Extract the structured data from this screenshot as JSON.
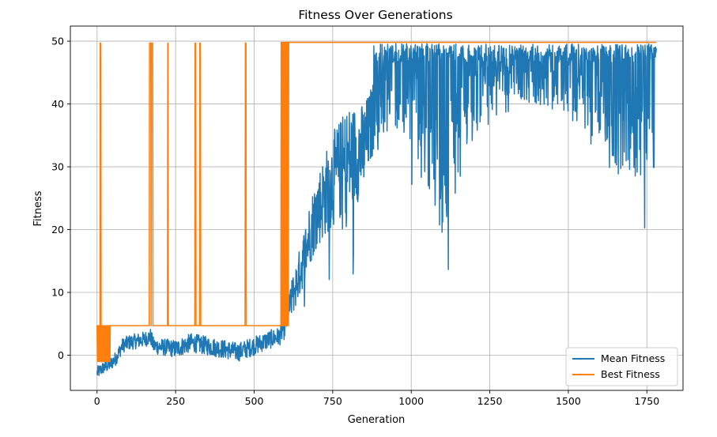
{
  "chart_data": {
    "type": "line",
    "title": "Fitness Over Generations",
    "xlabel": "Generation",
    "ylabel": "Fitness",
    "xlim": [
      -85,
      1865
    ],
    "ylim": [
      -5.6,
      52.4
    ],
    "xticks": [
      0,
      250,
      500,
      750,
      1000,
      1250,
      1500,
      1750
    ],
    "yticks": [
      0,
      10,
      20,
      30,
      40,
      50
    ],
    "grid": true,
    "legend_position": "lower right",
    "n_generations": 1780,
    "series": [
      {
        "name": "Mean Fitness",
        "color": "#1f77b4",
        "baseline_points": [
          [
            0,
            -2.8
          ],
          [
            20,
            -2
          ],
          [
            40,
            -1.5
          ],
          [
            60,
            -0.5
          ],
          [
            80,
            1.5
          ],
          [
            100,
            2
          ],
          [
            150,
            2.5
          ],
          [
            170,
            3
          ],
          [
            180,
            1.5
          ],
          [
            250,
            1
          ],
          [
            300,
            2
          ],
          [
            350,
            1.5
          ],
          [
            400,
            1
          ],
          [
            450,
            0.5
          ],
          [
            500,
            1.5
          ],
          [
            550,
            2.5
          ],
          [
            580,
            3
          ],
          [
            600,
            5
          ],
          [
            620,
            9
          ],
          [
            650,
            14
          ],
          [
            680,
            20
          ],
          [
            700,
            23
          ],
          [
            750,
            28
          ],
          [
            800,
            31
          ],
          [
            850,
            33
          ],
          [
            880,
            38
          ],
          [
            900,
            47
          ],
          [
            1000,
            47
          ],
          [
            1050,
            42
          ],
          [
            1100,
            40
          ],
          [
            1150,
            44
          ],
          [
            1200,
            46
          ],
          [
            1300,
            48
          ],
          [
            1500,
            47
          ],
          [
            1600,
            45
          ],
          [
            1700,
            43
          ],
          [
            1780,
            44
          ]
        ],
        "noise_amplitude_points": [
          [
            0,
            1
          ],
          [
            100,
            1.2
          ],
          [
            300,
            1.5
          ],
          [
            500,
            1.5
          ],
          [
            580,
            1.5
          ],
          [
            620,
            3
          ],
          [
            700,
            6
          ],
          [
            800,
            9
          ],
          [
            900,
            5
          ],
          [
            1000,
            6
          ],
          [
            1100,
            10
          ],
          [
            1200,
            5
          ],
          [
            1300,
            3
          ],
          [
            1500,
            4
          ],
          [
            1650,
            7
          ],
          [
            1780,
            7
          ]
        ]
      },
      {
        "name": "Best Fitness",
        "color": "#ff7f0e",
        "initial_oscillation": {
          "from": 0,
          "to": 42,
          "low": -1,
          "high": 4.7
        },
        "baseline_before": 4.7,
        "spike_value": 49.7,
        "spikes": [
          [
            10,
            12
          ],
          [
            167,
            171
          ],
          [
            173,
            177
          ],
          [
            225,
            226
          ],
          [
            312,
            314
          ],
          [
            327,
            329
          ],
          [
            472,
            474
          ]
        ],
        "rise_generation": 586,
        "oscillation_until": 612,
        "final_value": 49.8,
        "end_generation": 1780
      }
    ]
  }
}
